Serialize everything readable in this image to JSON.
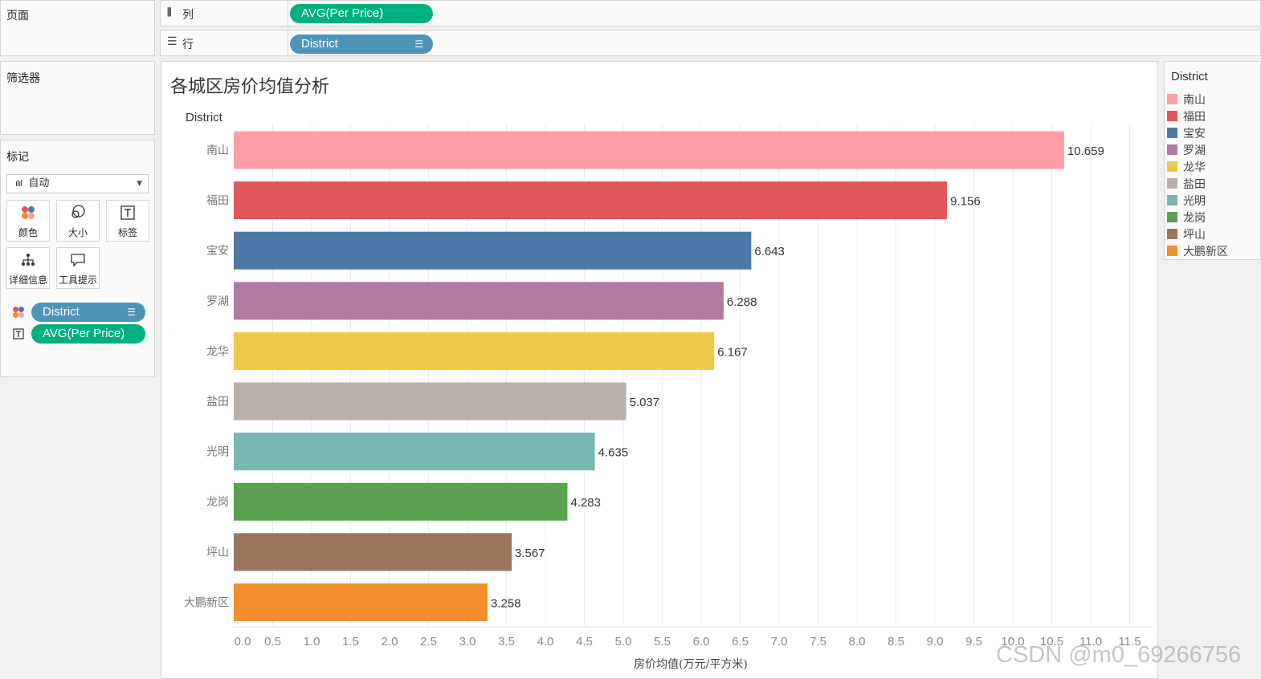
{
  "shelves": {
    "pages_label": "页面",
    "columns_label": "列",
    "columns_icon": "columns-icon",
    "rows_label": "行",
    "rows_icon": "rows-icon",
    "columns_pill": "AVG(Per Price)",
    "rows_pill": "District"
  },
  "filters": {
    "title": "筛选器"
  },
  "marks": {
    "title": "标记",
    "type_selected": "自动",
    "buttons": [
      {
        "label": "颜色",
        "icon": "color-icon"
      },
      {
        "label": "大小",
        "icon": "size-icon"
      },
      {
        "label": "标签",
        "icon": "label-icon"
      },
      {
        "label": "详细信息",
        "icon": "detail-icon"
      },
      {
        "label": "工具提示",
        "icon": "tooltip-icon"
      }
    ],
    "fields": [
      {
        "label": "District",
        "icon": "color-icon"
      },
      {
        "label": "AVG(Per Price)",
        "icon": "label-icon"
      }
    ]
  },
  "colors": {
    "pill_green": "#00b180",
    "pill_blue": "#4f94b8"
  },
  "legend": {
    "title": "District",
    "items": [
      {
        "label": "南山",
        "color": "#ff9da7"
      },
      {
        "label": "福田",
        "color": "#e15759"
      },
      {
        "label": "宝安",
        "color": "#4e79a7"
      },
      {
        "label": "罗湖",
        "color": "#b07aa1"
      },
      {
        "label": "龙华",
        "color": "#edc948"
      },
      {
        "label": "盐田",
        "color": "#bab0ac"
      },
      {
        "label": "光明",
        "color": "#76b7b2"
      },
      {
        "label": "龙岗",
        "color": "#59a14f"
      },
      {
        "label": "坪山",
        "color": "#9c755f"
      },
      {
        "label": "大鹏新区",
        "color": "#f28e2b"
      }
    ]
  },
  "watermark": "CSDN @m0_69266756",
  "chart_data": {
    "type": "bar",
    "orientation": "horizontal",
    "title": "各城区房价均值分析",
    "ylabel": "District",
    "xlabel": "房价均值(万元/平方米)",
    "categories": [
      "南山",
      "福田",
      "宝安",
      "罗湖",
      "龙华",
      "盐田",
      "光明",
      "龙岗",
      "坪山",
      "大鹏新区"
    ],
    "values": [
      10.659,
      9.156,
      6.643,
      6.288,
      6.167,
      5.037,
      4.635,
      4.283,
      3.567,
      3.258
    ],
    "value_labels": [
      "10.659",
      "9.156",
      "6.643",
      "6.288",
      "6.167",
      "5.037",
      "4.635",
      "4.283",
      "3.567",
      "3.258"
    ],
    "colors": [
      "#ff9da7",
      "#e15759",
      "#4e79a7",
      "#b07aa1",
      "#edc948",
      "#bab0ac",
      "#76b7b2",
      "#59a14f",
      "#9c755f",
      "#f28e2b"
    ],
    "xticks": [
      "0.0",
      "0.5",
      "1.0",
      "1.5",
      "2.0",
      "2.5",
      "3.0",
      "3.5",
      "4.0",
      "4.5",
      "5.0",
      "5.5",
      "6.0",
      "6.5",
      "7.0",
      "7.5",
      "8.0",
      "8.5",
      "9.0",
      "9.5",
      "10.0",
      "10.5",
      "11.0",
      "11.5"
    ],
    "xlim": [
      0,
      11.5
    ],
    "grid": true
  }
}
